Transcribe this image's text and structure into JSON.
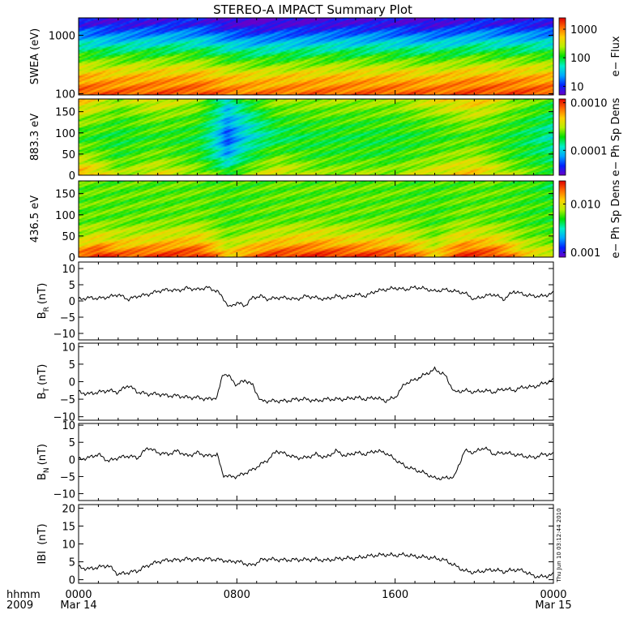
{
  "title": "STEREO-A IMPACT Summary Plot",
  "side_stamp": "Thu Jun 10 03:12:44 2010",
  "bottom_axis": {
    "corner_label_1": "hhmm",
    "corner_label_2": "2009",
    "ticks": [
      {
        "hour": 0,
        "time": "0000",
        "date": "Mar 14"
      },
      {
        "hour": 8,
        "time": "0800",
        "date": ""
      },
      {
        "hour": 16,
        "time": "1600",
        "date": ""
      },
      {
        "hour": 24,
        "time": "0000",
        "date": "Mar 15"
      }
    ]
  },
  "colors": {
    "colormap": [
      "#6a00c8",
      "#0022ff",
      "#00a8ff",
      "#00f0c8",
      "#00e000",
      "#b8f000",
      "#ffd000",
      "#ff6a00",
      "#e00000"
    ],
    "line": "#000000",
    "frame": "#000000",
    "background": "#ffffff"
  },
  "chart_data": [
    {
      "type": "heatmap",
      "panel": "swea",
      "ylabel": "SWEA (eV)",
      "ylog": true,
      "ylim": [
        95,
        2000
      ],
      "ytick_labels": [
        "1000",
        "100"
      ],
      "ytick_values": [
        1000,
        100
      ],
      "colorbar_label": "e− Flux",
      "colorbar_ticks": [
        "1000",
        "100",
        "10"
      ],
      "colorbar_tick_values": [
        1000,
        100,
        10
      ],
      "colorbar_range": [
        5,
        2500
      ],
      "x_hours": [
        0,
        2,
        4,
        6,
        7.5,
        9,
        10,
        12,
        14,
        16,
        18,
        20,
        22,
        24
      ],
      "energy_eV": [
        100,
        200,
        400,
        800,
        1600
      ],
      "values": [
        [
          1400,
          1300,
          1350,
          1450,
          1100,
          1050,
          1100,
          1200,
          1250,
          1300,
          1250,
          1500,
          1450,
          1400
        ],
        [
          600,
          580,
          620,
          650,
          480,
          450,
          470,
          520,
          540,
          560,
          530,
          650,
          640,
          620
        ],
        [
          160,
          150,
          165,
          170,
          120,
          110,
          115,
          130,
          140,
          145,
          135,
          170,
          165,
          160
        ],
        [
          35,
          32,
          36,
          38,
          26,
          24,
          25,
          28,
          30,
          31,
          29,
          38,
          36,
          35
        ],
        [
          8,
          7,
          8,
          9,
          6,
          5,
          6,
          6,
          7,
          7,
          6,
          9,
          8,
          8
        ]
      ]
    },
    {
      "type": "heatmap",
      "panel": "pad883",
      "ylabel": "883.3 eV",
      "ylim": [
        0,
        180
      ],
      "ytick_labels": [
        "150",
        "100",
        "50",
        "0"
      ],
      "ytick_values": [
        150,
        100,
        50,
        0
      ],
      "colorbar_label": "e− Ph Sp Dens",
      "colorbar_ticks": [
        "0.0010",
        "0.0001"
      ],
      "colorbar_tick_values": [
        0.001,
        0.0001
      ],
      "colorbar_log": true,
      "colorbar_range": [
        3e-05,
        0.0012
      ],
      "x_hours": [
        0,
        2,
        4,
        6,
        7.5,
        8.5,
        10,
        12,
        14,
        16,
        18,
        20,
        22,
        24
      ],
      "pitch_angle_deg": [
        0,
        45,
        90,
        135,
        180
      ],
      "values": [
        [
          0.0006,
          0.0003,
          0.0004,
          0.0003,
          0.0002,
          0.0003,
          0.0004,
          0.0003,
          0.0003,
          0.0003,
          0.0004,
          0.0005,
          0.0003,
          0.0002
        ],
        [
          0.0003,
          0.0002,
          0.00025,
          0.0002,
          8e-05,
          0.00015,
          0.00025,
          0.0002,
          0.0002,
          0.0002,
          0.00025,
          0.0003,
          0.0002,
          0.00015
        ],
        [
          0.0002,
          0.00018,
          0.0002,
          0.00018,
          5e-05,
          0.0001,
          0.00015,
          0.00018,
          0.00018,
          0.00018,
          0.0002,
          0.00022,
          0.00018,
          0.00012
        ],
        [
          0.0003,
          0.00022,
          0.00025,
          0.00022,
          8e-05,
          0.00012,
          0.0002,
          0.00022,
          0.00022,
          0.00022,
          0.00025,
          0.0003,
          0.00022,
          0.00015
        ],
        [
          0.0005,
          0.0003,
          0.0004,
          0.0003,
          0.0001,
          0.0002,
          0.0003,
          0.0003,
          0.0003,
          0.0003,
          0.0004,
          0.0005,
          0.0003,
          0.0002
        ]
      ]
    },
    {
      "type": "heatmap",
      "panel": "pad436",
      "ylabel": "436.5 eV",
      "ylim": [
        0,
        180
      ],
      "ytick_labels": [
        "150",
        "100",
        "50",
        "0"
      ],
      "ytick_values": [
        150,
        100,
        50,
        0
      ],
      "colorbar_label": "e− Ph Sp Dens",
      "colorbar_ticks": [
        "0.010",
        "0.001"
      ],
      "colorbar_tick_values": [
        0.01,
        0.001
      ],
      "colorbar_log": true,
      "colorbar_range": [
        0.0008,
        0.03
      ],
      "x_hours": [
        0,
        1,
        2,
        4,
        6,
        7.5,
        10,
        12,
        14,
        16,
        18,
        19.5,
        21,
        22.5,
        24
      ],
      "pitch_angle_deg": [
        0,
        45,
        90,
        135,
        180
      ],
      "values": [
        [
          0.02,
          0.03,
          0.022,
          0.025,
          0.028,
          0.012,
          0.026,
          0.027,
          0.026,
          0.025,
          0.012,
          0.027,
          0.026,
          0.012,
          0.01
        ],
        [
          0.008,
          0.01,
          0.009,
          0.01,
          0.011,
          0.007,
          0.01,
          0.011,
          0.01,
          0.01,
          0.007,
          0.011,
          0.01,
          0.007,
          0.006
        ],
        [
          0.006,
          0.006,
          0.006,
          0.006,
          0.0065,
          0.0055,
          0.006,
          0.0062,
          0.006,
          0.006,
          0.0055,
          0.0065,
          0.006,
          0.0055,
          0.005
        ],
        [
          0.006,
          0.006,
          0.006,
          0.006,
          0.006,
          0.0055,
          0.006,
          0.006,
          0.006,
          0.006,
          0.0055,
          0.006,
          0.006,
          0.0055,
          0.005
        ],
        [
          0.006,
          0.006,
          0.0058,
          0.006,
          0.006,
          0.0055,
          0.006,
          0.006,
          0.006,
          0.006,
          0.0055,
          0.006,
          0.006,
          0.0055,
          0.004
        ]
      ]
    },
    {
      "type": "line",
      "panel": "br",
      "ylabel": "BR (nT)",
      "ylabel_main": "B",
      "ylabel_sub": "R",
      "ylabel_unit": "(nT)",
      "ylim": [
        -12,
        12
      ],
      "ytick_values": [
        10,
        5,
        0,
        -5,
        -10
      ],
      "ytick_labels": [
        "10",
        "5",
        "0",
        "−5",
        "−10"
      ],
      "x_hours": [
        0,
        0.5,
        1,
        1.5,
        2,
        2.5,
        3,
        3.5,
        4,
        4.5,
        5,
        5.5,
        6,
        6.5,
        7,
        7.3,
        7.6,
        8,
        8.4,
        8.8,
        9.2,
        9.6,
        10,
        10.5,
        11,
        11.5,
        12,
        12.5,
        13,
        13.5,
        14,
        14.5,
        15,
        15.5,
        16,
        16.5,
        17,
        17.5,
        18,
        18.5,
        19,
        19.5,
        20,
        20.5,
        21,
        21.5,
        22,
        22.5,
        23,
        23.5,
        24
      ],
      "values": [
        0.5,
        1,
        0.8,
        1.2,
        2,
        0.5,
        1.5,
        2,
        3,
        3.5,
        3.2,
        4,
        3.5,
        4.2,
        3,
        1,
        -2,
        -0.5,
        -1.5,
        1,
        1.5,
        0.5,
        1,
        1,
        0.5,
        1.5,
        1,
        0.5,
        1.5,
        1,
        2,
        1.5,
        3,
        3.5,
        4,
        3.5,
        4.2,
        3.8,
        3,
        3.5,
        3,
        2.5,
        0.5,
        1.5,
        2,
        0.5,
        3,
        2,
        1.5,
        1.5,
        2.5
      ]
    },
    {
      "type": "line",
      "panel": "bt",
      "ylabel": "BT (nT)",
      "ylabel_main": "B",
      "ylabel_sub": "T",
      "ylabel_unit": "(nT)",
      "ylim": [
        -11,
        11
      ],
      "ytick_values": [
        10,
        5,
        0,
        -5,
        -10
      ],
      "ytick_labels": [
        "10",
        "5",
        "0",
        "−5",
        "−10"
      ],
      "x_hours": [
        0,
        0.5,
        1,
        1.5,
        2,
        2.5,
        3,
        3.5,
        4,
        4.5,
        5,
        5.5,
        6,
        6.5,
        7,
        7.3,
        7.6,
        8,
        8.4,
        8.8,
        9.2,
        9.6,
        10,
        10.5,
        11,
        11.5,
        12,
        12.5,
        13,
        13.5,
        14,
        14.5,
        15,
        15.5,
        16,
        16.5,
        17,
        17.5,
        18,
        18.5,
        19,
        19.5,
        20,
        20.5,
        21,
        21.5,
        22,
        22.5,
        23,
        23.5,
        24
      ],
      "values": [
        -3,
        -3.5,
        -3,
        -2.5,
        -3,
        -1,
        -3,
        -3.5,
        -3.5,
        -4,
        -4,
        -4.5,
        -4.5,
        -5,
        -4.5,
        2.5,
        1.5,
        -1,
        0.5,
        -1,
        -5.5,
        -5.5,
        -5.5,
        -5.5,
        -5,
        -5,
        -5.5,
        -5,
        -5,
        -5,
        -4.5,
        -5,
        -4.5,
        -5.5,
        -4.5,
        -0.5,
        0.5,
        2,
        3.5,
        2,
        -3,
        -2.5,
        -3,
        -2.5,
        -3,
        -2,
        -2.5,
        -1.5,
        -1.5,
        -0.5,
        0.5
      ]
    },
    {
      "type": "line",
      "panel": "bn",
      "ylabel": "BN (nT)",
      "ylabel_main": "B",
      "ylabel_sub": "N",
      "ylabel_unit": "(nT)",
      "ylim": [
        -12,
        10.5
      ],
      "ytick_values": [
        10,
        5,
        0,
        -5,
        -10
      ],
      "ytick_labels": [
        "10",
        "5",
        "0",
        "−5",
        "−10"
      ],
      "x_hours": [
        0,
        0.5,
        1,
        1.5,
        2,
        2.5,
        3,
        3.5,
        4,
        4.5,
        5,
        5.5,
        6,
        6.5,
        7,
        7.3,
        7.6,
        8,
        8.4,
        8.8,
        9.2,
        9.6,
        10,
        10.5,
        11,
        11.5,
        12,
        12.5,
        13,
        13.5,
        14,
        14.5,
        15,
        15.5,
        16,
        16.5,
        17,
        17.5,
        18,
        18.5,
        19,
        19.5,
        20,
        20.5,
        21,
        21.5,
        22,
        22.5,
        23,
        23.5,
        24
      ],
      "values": [
        0,
        0.5,
        1.5,
        -0.5,
        0.5,
        1,
        0.5,
        3.5,
        2,
        1.5,
        2.5,
        1,
        2,
        1,
        1.5,
        -4.5,
        -5,
        -5,
        -4,
        -3,
        -1.5,
        0,
        2.5,
        1.5,
        0.5,
        0.5,
        1.5,
        0.5,
        2.5,
        1,
        2,
        1.5,
        2.5,
        2,
        0,
        -2,
        -3,
        -4,
        -5.5,
        -5.5,
        -5,
        2.5,
        2,
        3.5,
        1.5,
        2,
        1.5,
        1,
        0.5,
        1.5,
        1.5
      ]
    },
    {
      "type": "line",
      "panel": "bmag",
      "ylabel": "|B| (nT)",
      "ylabel_main": "IBI",
      "ylabel_sub": "",
      "ylabel_unit": "(nT)",
      "ylim": [
        -1,
        21
      ],
      "ytick_values": [
        20,
        15,
        10,
        5,
        0
      ],
      "ytick_labels": [
        "20",
        "15",
        "10",
        "5",
        "0"
      ],
      "x_hours": [
        0,
        0.5,
        1,
        1.5,
        2,
        2.5,
        3,
        3.5,
        4,
        4.5,
        5,
        5.5,
        6,
        6.5,
        7,
        7.3,
        7.6,
        8,
        8.4,
        8.8,
        9.2,
        9.6,
        10,
        10.5,
        11,
        11.5,
        12,
        12.5,
        13,
        13.5,
        14,
        14.5,
        15,
        15.5,
        16,
        16.5,
        17,
        17.5,
        18,
        18.5,
        19,
        19.5,
        20,
        20.5,
        21,
        21.5,
        22,
        22.5,
        23,
        23.5,
        24
      ],
      "values": [
        3.5,
        3,
        3.5,
        4,
        1.5,
        2,
        2.5,
        4,
        5,
        5.5,
        5.5,
        5.8,
        5.7,
        5.8,
        5.6,
        5.5,
        5,
        5.2,
        4.5,
        4,
        5.5,
        5.8,
        5.6,
        5.5,
        5.6,
        5.6,
        5.7,
        5.4,
        5.8,
        6,
        6,
        6.5,
        6.8,
        7,
        6.8,
        7,
        6.5,
        6.3,
        6,
        5.5,
        4,
        2.5,
        2,
        2.5,
        2.8,
        2.2,
        2.8,
        2.5,
        1,
        0.8,
        1.5
      ]
    }
  ]
}
